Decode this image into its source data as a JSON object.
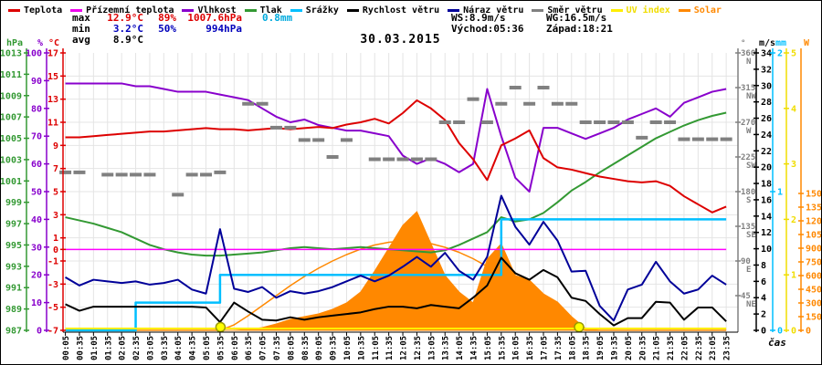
{
  "title": "30.03.2015",
  "legend": {
    "items": [
      {
        "label": "Teplota",
        "color": "#dd0000",
        "text_color": "#000000"
      },
      {
        "label": "Přízemní teplota",
        "color": "#ee00ee",
        "text_color": "#000000"
      },
      {
        "label": "Vlhkost",
        "color": "#8800cc",
        "text_color": "#000000"
      },
      {
        "label": "Tlak",
        "color": "#339933",
        "text_color": "#000000"
      },
      {
        "label": "Srážky",
        "color": "#00bfff",
        "text_color": "#000000"
      },
      {
        "label": "Rychlost větru",
        "color": "#000000",
        "text_color": "#000000"
      },
      {
        "label": "Náraz větru",
        "color": "#000099",
        "text_color": "#000000"
      },
      {
        "label": "Směr větru",
        "color": "#808080",
        "text_color": "#000000"
      },
      {
        "label": "UV index",
        "color": "#ffee00",
        "text_color": "#f0dd00"
      },
      {
        "label": "Solar",
        "color": "#ff8800",
        "text_color": "#ff8800"
      }
    ]
  },
  "stats": {
    "max_label": "max",
    "max_temp": "12.9°C",
    "max_hum": "89%",
    "max_pres": "1007.6hPa",
    "max_rain": "0.8mm",
    "min_label": "min",
    "min_temp": "3.2°C",
    "min_hum": "50%",
    "min_pres": "994hPa",
    "avg_label": "avg",
    "avg_temp": "8.9°C",
    "ws": "WS:8.9m/s",
    "wg": "WG:16.5m/s",
    "sunrise": "Východ:05:36",
    "sunset": "Západ:18:21"
  },
  "xaxis_label": "čas",
  "chart_data": {
    "type": "line",
    "title": "30.03.2015",
    "xlabel": "čas",
    "grid": true,
    "x_times": [
      "00:05",
      "00:35",
      "01:05",
      "01:35",
      "02:05",
      "02:35",
      "03:05",
      "03:35",
      "04:05",
      "04:35",
      "05:05",
      "05:35",
      "06:05",
      "06:35",
      "07:05",
      "07:35",
      "08:05",
      "08:35",
      "09:05",
      "09:35",
      "10:05",
      "10:35",
      "11:05",
      "11:35",
      "12:05",
      "12:35",
      "13:05",
      "13:35",
      "14:05",
      "14:35",
      "15:05",
      "15:35",
      "16:05",
      "16:35",
      "17:05",
      "17:35",
      "18:05",
      "18:35",
      "19:05",
      "19:35",
      "20:05",
      "20:35",
      "21:05",
      "21:35",
      "22:05",
      "22:35",
      "23:05",
      "23:35"
    ],
    "sun_markers": {
      "sunrise_time": "05:36",
      "sunset_time": "18:21"
    },
    "axes": [
      {
        "id": "hpa",
        "header": "hPa",
        "color": "#339933",
        "side": "left",
        "domain": [
          987,
          1013
        ],
        "ticks": [
          1013,
          1011,
          1009,
          1007,
          1005,
          1003,
          1001,
          999,
          997,
          995,
          993,
          991,
          989,
          987
        ]
      },
      {
        "id": "pct",
        "header": "%",
        "color": "#8800cc",
        "side": "left",
        "domain": [
          0,
          100
        ],
        "ticks": [
          100,
          90,
          80,
          70,
          60,
          50,
          40,
          30,
          20,
          10,
          0
        ]
      },
      {
        "id": "c",
        "header": "°C",
        "color": "#dd0000",
        "side": "left",
        "domain": [
          -7,
          17
        ],
        "ticks": [
          17,
          15,
          13,
          11,
          9,
          7,
          5,
          3,
          1,
          0,
          -1,
          -3,
          -5,
          -7
        ]
      },
      {
        "id": "deg",
        "header": "°",
        "color": "#808080",
        "side": "right",
        "domain": [
          0,
          360
        ],
        "dir_ticks": [
          {
            "v": 360,
            "t": "360",
            "s": "N"
          },
          {
            "v": 315,
            "t": "315",
            "s": "NW"
          },
          {
            "v": 270,
            "t": "270",
            "s": "W"
          },
          {
            "v": 225,
            "t": "225",
            "s": "SW"
          },
          {
            "v": 180,
            "t": "180",
            "s": "S"
          },
          {
            "v": 135,
            "t": "135",
            "s": "SE"
          },
          {
            "v": 90,
            "t": "90",
            "s": "E"
          },
          {
            "v": 45,
            "t": "45",
            "s": "NE"
          }
        ],
        "ticks": []
      },
      {
        "id": "ms",
        "header": "m/s",
        "color": "#000000",
        "side": "right",
        "domain": [
          0,
          34
        ],
        "ticks": [
          34,
          32,
          30,
          28,
          26,
          24,
          22,
          20,
          18,
          16,
          14,
          12,
          10,
          8,
          6,
          4,
          2,
          0
        ]
      },
      {
        "id": "mm",
        "header": "mm",
        "color": "#00bfff",
        "side": "right",
        "domain": [
          0,
          2
        ],
        "ticks": [
          2,
          1,
          0
        ]
      },
      {
        "id": "uv",
        "header": "",
        "color": "#f0dd00",
        "side": "right",
        "domain": [
          0,
          5
        ],
        "ticks": [
          5,
          4,
          3,
          2,
          1,
          0
        ]
      },
      {
        "id": "w",
        "header": "W",
        "color": "#ff8800",
        "side": "right",
        "domain": [
          0,
          3040
        ],
        "ticks": [
          1500,
          1350,
          1200,
          1050,
          900,
          750,
          600,
          450,
          300,
          150,
          0
        ]
      }
    ],
    "series": [
      {
        "name": "Tlak",
        "unit": "hPa",
        "axis": "hpa",
        "color": "#339933",
        "width": 2,
        "values": [
          997.6,
          997.3,
          997.0,
          996.6,
          996.2,
          995.6,
          995.0,
          994.6,
          994.3,
          994.1,
          994.0,
          994.0,
          994.1,
          994.2,
          994.3,
          994.5,
          994.7,
          994.8,
          994.7,
          994.6,
          994.7,
          994.8,
          994.7,
          994.6,
          994.5,
          994.4,
          994.3,
          994.5,
          995.0,
          995.6,
          996.2,
          997.6,
          997.2,
          997.4,
          998.0,
          999.0,
          1000.1,
          1000.9,
          1001.8,
          1002.6,
          1003.4,
          1004.2,
          1005.0,
          1005.6,
          1006.2,
          1006.7,
          1007.1,
          1007.4
        ]
      },
      {
        "name": "Přízemní teplota",
        "unit": "°C",
        "axis": "c",
        "color": "#ff00ff",
        "width": 1.5,
        "values": [
          0,
          0,
          0,
          0,
          0,
          0,
          0,
          0,
          0,
          0,
          0,
          0,
          0,
          0,
          0,
          0,
          0,
          0,
          0,
          0,
          0,
          0,
          0,
          0,
          0,
          0,
          0,
          0,
          0,
          0,
          0,
          0,
          0,
          0,
          0,
          0,
          0,
          0,
          0,
          0,
          0,
          0,
          0,
          0,
          0,
          0,
          0,
          0
        ]
      },
      {
        "name": "Solar max",
        "unit": "W",
        "axis": "w",
        "color": "#ff8800",
        "width": 1.5,
        "legend": false,
        "values": [
          0,
          0,
          0,
          0,
          0,
          0,
          0,
          0,
          0,
          0,
          0,
          0,
          60,
          160,
          270,
          380,
          490,
          590,
          680,
          760,
          830,
          890,
          935,
          965,
          980,
          975,
          950,
          910,
          855,
          785,
          700,
          600,
          490,
          370,
          250,
          130,
          30,
          0,
          0,
          0,
          0,
          0,
          0,
          0,
          0,
          0,
          0,
          0
        ]
      },
      {
        "name": "Solar",
        "unit": "W",
        "axis": "w",
        "color": "#ff8800",
        "style": "area",
        "values": [
          0,
          0,
          0,
          0,
          0,
          0,
          0,
          0,
          0,
          0,
          0,
          0,
          0,
          10,
          30,
          70,
          120,
          150,
          180,
          230,
          300,
          420,
          650,
          900,
          1150,
          1300,
          950,
          600,
          420,
          300,
          780,
          950,
          600,
          550,
          400,
          310,
          150,
          20,
          0,
          0,
          0,
          0,
          0,
          0,
          0,
          0,
          0,
          0
        ]
      },
      {
        "name": "Srážky",
        "unit": "mm",
        "axis": "mm",
        "color": "#00bfff",
        "width": 2.5,
        "style": "step",
        "values": [
          0,
          0,
          0,
          0,
          0,
          0.2,
          0.2,
          0.2,
          0.2,
          0.2,
          0.2,
          0.4,
          0.4,
          0.4,
          0.4,
          0.4,
          0.4,
          0.4,
          0.4,
          0.4,
          0.4,
          0.4,
          0.4,
          0.4,
          0.4,
          0.4,
          0.4,
          0.4,
          0.4,
          0.4,
          0.4,
          0.8,
          0.8,
          0.8,
          0.8,
          0.8,
          0.8,
          0.8,
          0.8,
          0.8,
          0.8,
          0.8,
          0.8,
          0.8,
          0.8,
          0.8,
          0.8,
          0.8
        ]
      },
      {
        "name": "Vlhkost",
        "unit": "%",
        "axis": "pct",
        "color": "#8800cc",
        "width": 2,
        "values": [
          89,
          89,
          89,
          89,
          89,
          88,
          88,
          87,
          86,
          86,
          86,
          85,
          84,
          83,
          80,
          77,
          75,
          76,
          74,
          73,
          72,
          72,
          71,
          70,
          63,
          60,
          62,
          60,
          57,
          60,
          87,
          70,
          55,
          50,
          73,
          73,
          71,
          69,
          71,
          73,
          76,
          78,
          80,
          77,
          82,
          84,
          86,
          87
        ]
      },
      {
        "name": "Teplota",
        "unit": "°C",
        "axis": "c",
        "color": "#dd0000",
        "width": 2,
        "values": [
          9.7,
          9.7,
          9.8,
          9.9,
          10.0,
          10.1,
          10.2,
          10.2,
          10.3,
          10.4,
          10.5,
          10.4,
          10.4,
          10.3,
          10.4,
          10.5,
          10.4,
          10.5,
          10.6,
          10.5,
          10.8,
          11.0,
          11.3,
          10.9,
          11.8,
          12.9,
          12.2,
          11.2,
          9.2,
          7.8,
          6.0,
          9.0,
          9.6,
          10.3,
          7.9,
          7.1,
          6.9,
          6.6,
          6.3,
          6.1,
          5.9,
          5.8,
          5.9,
          5.5,
          4.6,
          3.9,
          3.2,
          3.7
        ]
      },
      {
        "name": "Náraz větru",
        "unit": "m/s",
        "axis": "ms",
        "color": "#000099",
        "width": 2,
        "values": [
          6.5,
          5.5,
          6.2,
          6.0,
          5.8,
          6.0,
          5.6,
          5.8,
          6.2,
          5.0,
          4.5,
          12.4,
          5.1,
          4.7,
          5.3,
          4.0,
          4.8,
          4.5,
          4.8,
          5.3,
          6.0,
          6.7,
          6.0,
          6.7,
          7.8,
          9.0,
          7.8,
          9.5,
          7.3,
          6.2,
          9.0,
          16.5,
          12.7,
          10.5,
          13.3,
          11.0,
          7.2,
          7.3,
          3.0,
          1.2,
          5.0,
          5.6,
          8.4,
          6.0,
          4.5,
          5.0,
          6.7,
          5.6
        ]
      },
      {
        "name": "Rychlost větru",
        "unit": "m/s",
        "axis": "ms",
        "color": "#000000",
        "width": 2,
        "values": [
          3.2,
          2.4,
          2.9,
          2.9,
          2.9,
          2.9,
          2.9,
          2.9,
          2.9,
          2.9,
          2.8,
          1.0,
          3.4,
          2.3,
          1.3,
          1.2,
          1.6,
          1.3,
          1.6,
          1.8,
          2.0,
          2.2,
          2.6,
          2.9,
          2.9,
          2.7,
          3.1,
          2.9,
          2.7,
          4.0,
          5.5,
          8.9,
          7.0,
          6.2,
          7.4,
          6.5,
          4.0,
          3.6,
          2.0,
          0.6,
          1.5,
          1.5,
          3.5,
          3.4,
          1.3,
          2.8,
          2.8,
          1.1
        ]
      },
      {
        "name": "Směr větru",
        "unit": "°",
        "axis": "deg",
        "color": "#808080",
        "style": "dashes",
        "values": [
          205,
          205,
          null,
          202,
          202,
          202,
          202,
          null,
          176,
          202,
          202,
          205,
          null,
          294,
          294,
          263,
          263,
          247,
          247,
          225,
          247,
          null,
          222,
          222,
          222,
          222,
          222,
          270,
          270,
          300,
          270,
          294,
          315,
          294,
          315,
          294,
          294,
          270,
          270,
          270,
          270,
          250,
          270,
          270,
          248,
          248,
          248,
          248
        ]
      },
      {
        "name": "UV index",
        "unit": "UV",
        "axis": "uv",
        "color": "#ffee00",
        "width": 2,
        "values": [
          0,
          0,
          0,
          0,
          0,
          0,
          0,
          0,
          0,
          0,
          0,
          0,
          0,
          0,
          0,
          0,
          0,
          0,
          0,
          0,
          0,
          0,
          0,
          0,
          0,
          0,
          0,
          0,
          0,
          0,
          0,
          0,
          0,
          0,
          0,
          0,
          0,
          0,
          0,
          0,
          0,
          0,
          0,
          0,
          0,
          0,
          0,
          0
        ]
      }
    ]
  }
}
